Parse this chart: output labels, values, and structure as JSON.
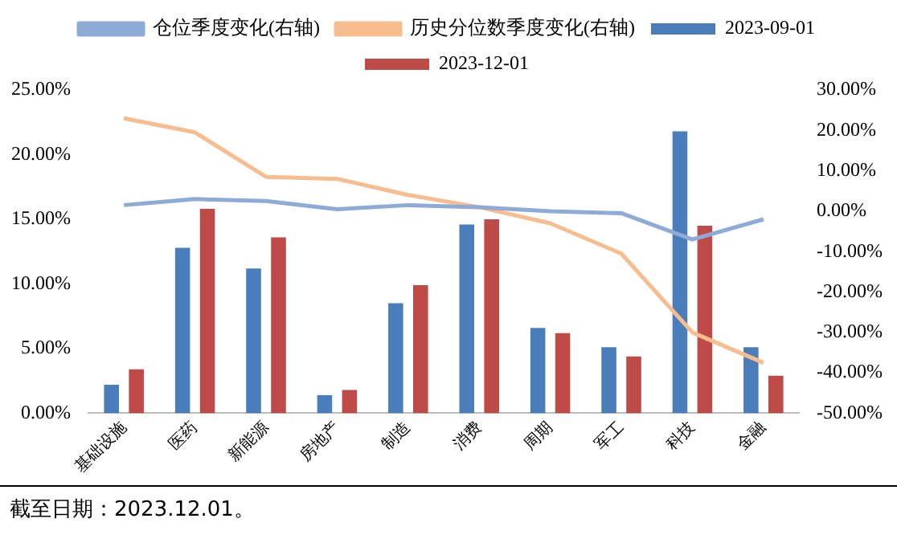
{
  "chart_data": {
    "type": "bar",
    "categories": [
      "基础设施",
      "医药",
      "新能源",
      "房地产",
      "制造",
      "消费",
      "周期",
      "军工",
      "科技",
      "金融"
    ],
    "series": [
      {
        "name": "2023-09-01",
        "color": "#4a7ebb",
        "values": [
          2.2,
          12.8,
          11.2,
          1.4,
          8.5,
          14.6,
          6.6,
          5.1,
          21.8,
          5.1
        ]
      },
      {
        "name": "2023-12-01",
        "color": "#be4b48",
        "values": [
          3.4,
          15.8,
          13.6,
          1.8,
          9.9,
          15.0,
          6.2,
          4.4,
          14.5,
          2.9
        ]
      },
      {
        "name": "仓位季度变化(右轴)",
        "type": "line",
        "axis": "y2",
        "color": "#8eaad6",
        "values": [
          1.5,
          3,
          2.5,
          0.5,
          1.5,
          1,
          0,
          -0.5,
          -7,
          -2
        ]
      },
      {
        "name": "历史分位数季度变化(右轴)",
        "type": "line",
        "axis": "y2",
        "color": "#f7bd8f",
        "values": [
          23,
          19.5,
          8.5,
          8,
          4,
          1,
          -3,
          -10.5,
          -30,
          -37.5
        ]
      }
    ],
    "ylim": [
      0,
      25
    ],
    "yticks": [
      {
        "value": 0,
        "label": "0.00%"
      },
      {
        "value": 5,
        "label": "5.00%"
      },
      {
        "value": 10,
        "label": "10.00%"
      },
      {
        "value": 15,
        "label": "15.00%"
      },
      {
        "value": 20,
        "label": "20.00%"
      },
      {
        "value": 25,
        "label": "25.00%"
      }
    ],
    "y2lim": [
      -50,
      30
    ],
    "y2ticks": [
      {
        "value": -50,
        "label": "-50.00%"
      },
      {
        "value": -40,
        "label": "-40.00%"
      },
      {
        "value": -30,
        "label": "-30.00%"
      },
      {
        "value": -20,
        "label": "-20.00%"
      },
      {
        "value": -10,
        "label": "-10.00%"
      },
      {
        "value": 0,
        "label": "0.00%"
      },
      {
        "value": 10,
        "label": "10.00%"
      },
      {
        "value": 20,
        "label": "20.00%"
      },
      {
        "value": 30,
        "label": "30.00%"
      }
    ],
    "grid": false,
    "legend": "top",
    "marker": "none",
    "annotations": [
      "截至日期：2023.12.01。"
    ]
  }
}
